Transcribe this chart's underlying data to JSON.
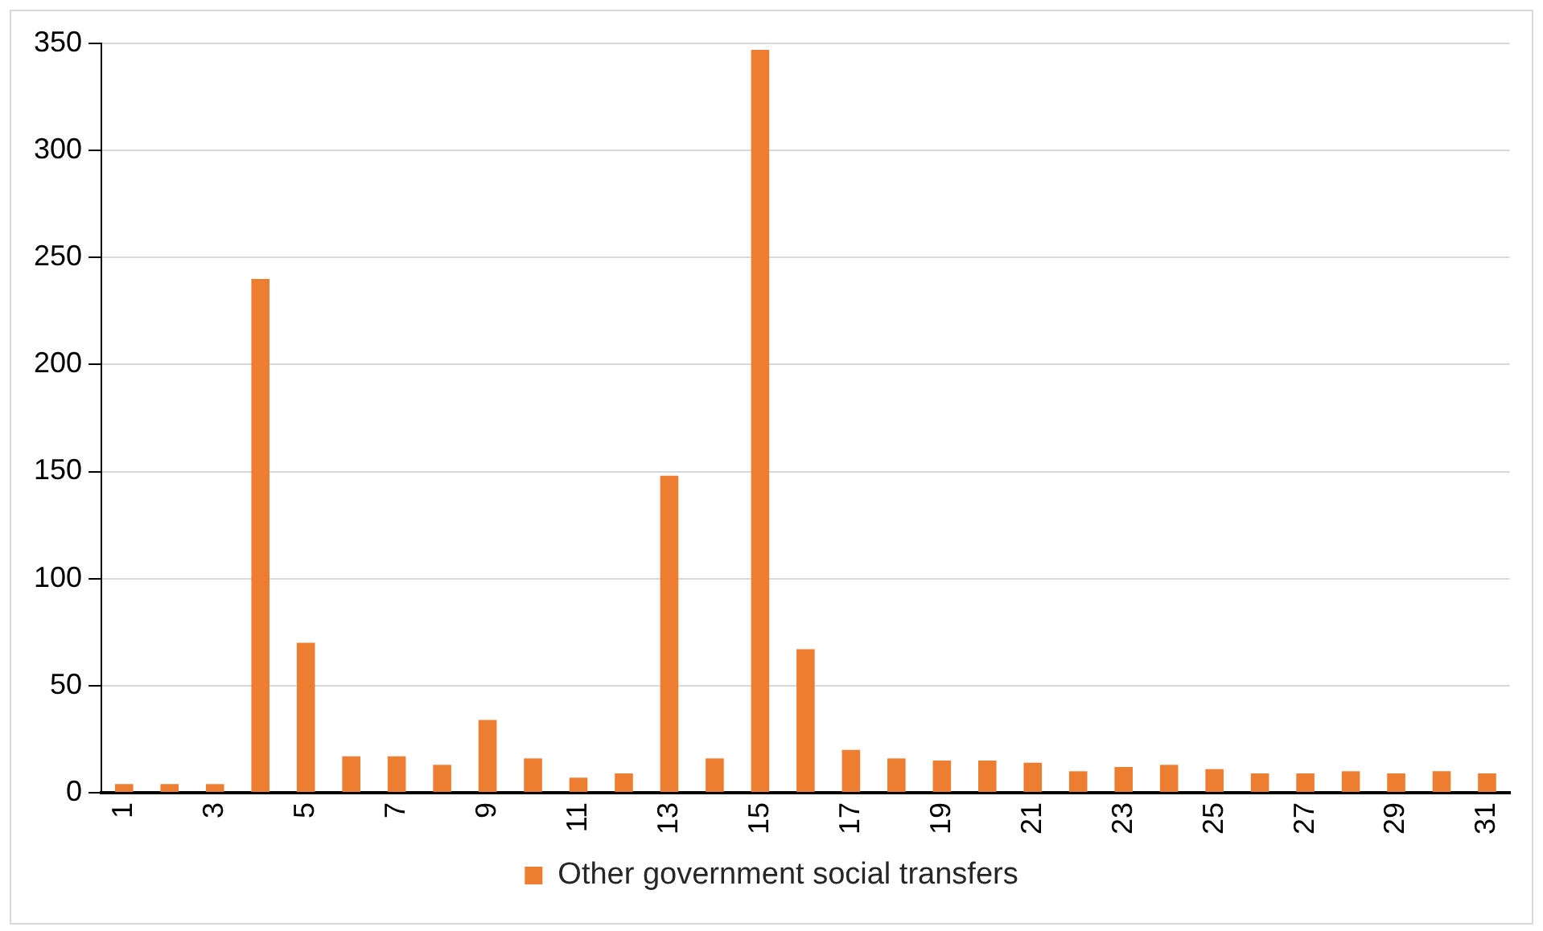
{
  "chart_data": {
    "type": "bar",
    "categories": [
      "1",
      null,
      "3",
      null,
      "5",
      null,
      "7",
      null,
      "9",
      null,
      "11",
      null,
      "13",
      null,
      "15",
      null,
      "17",
      null,
      "19",
      null,
      "21",
      null,
      "23",
      null,
      "25",
      null,
      "27",
      null,
      "29",
      null,
      "31"
    ],
    "series": [
      {
        "name": "Other government social transfers",
        "color": "#ed7d31",
        "values": [
          4,
          4,
          4,
          240,
          70,
          17,
          17,
          13,
          34,
          16,
          7,
          9,
          148,
          16,
          347,
          67,
          20,
          16,
          15,
          15,
          14,
          10,
          12,
          13,
          11,
          9,
          9,
          10,
          9,
          10,
          9
        ]
      }
    ],
    "ylim": [
      0,
      350
    ],
    "yticks": [
      0,
      50,
      100,
      150,
      200,
      250,
      300,
      350
    ],
    "grid": "y",
    "legend": "bottom"
  }
}
